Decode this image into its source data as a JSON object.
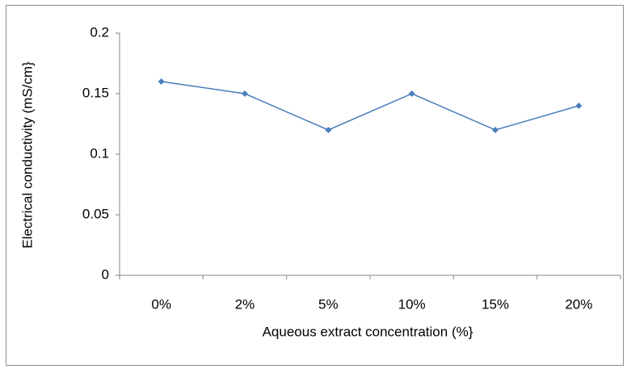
{
  "chart_data": {
    "type": "line",
    "x_label": "Aqueous extract concentration (%}",
    "y_label": "Electrical conductivity (mS/cm}",
    "categories": [
      "0%",
      "2%",
      "5%",
      "10%",
      "15%",
      "20%"
    ],
    "values": [
      0.16,
      0.15,
      0.12,
      0.15,
      0.12,
      0.14
    ],
    "color": "#4a7ebb",
    "ylim": [
      0,
      0.2
    ],
    "yticks": [
      0,
      0.05,
      0.1,
      0.15,
      0.2
    ],
    "grid": false
  }
}
